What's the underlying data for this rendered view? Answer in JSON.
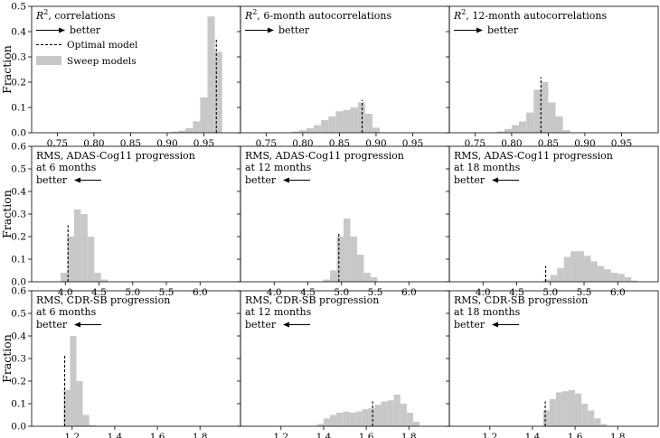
{
  "legend": {
    "optimal_label": "Optimal model",
    "sweep_label": "Sweep models"
  },
  "ylabel": "Fraction",
  "colors": {
    "sweep_bar": "#c8c8c8",
    "optimal_line": "#000000",
    "frame": "#000000"
  },
  "chart_data": [
    {
      "type": "bar",
      "title_math": "R",
      "title_sup": "2",
      "title_text": ", correlations",
      "title_lines": [],
      "direction_label": "better",
      "direction": "right",
      "xlim": [
        0.715,
        1.0
      ],
      "ylim": [
        0,
        0.5
      ],
      "xticks": [
        0.75,
        0.8,
        0.85,
        0.9,
        0.95
      ],
      "xtick_labels": [
        "0.75",
        "0.80",
        "0.85",
        "0.90",
        "0.95"
      ],
      "yticks": [
        0.0,
        0.1,
        0.2,
        0.3,
        0.4,
        0.5
      ],
      "ytick_labels": [
        "0.0",
        "0.1",
        "0.2",
        "0.3",
        "0.4",
        "0.5"
      ],
      "show_ylabel": true,
      "show_legend": true,
      "bins": [
        [
          0.905,
          0.915,
          0.004
        ],
        [
          0.915,
          0.925,
          0.008
        ],
        [
          0.925,
          0.935,
          0.018
        ],
        [
          0.935,
          0.945,
          0.045
        ],
        [
          0.945,
          0.955,
          0.14
        ],
        [
          0.955,
          0.965,
          0.46
        ],
        [
          0.965,
          0.975,
          0.32
        ]
      ],
      "optimal": 0.967,
      "optimal_top": 0.37
    },
    {
      "type": "bar",
      "title_math": "R",
      "title_sup": "2",
      "title_text": ", 6-month autocorrelations",
      "title_lines": [],
      "direction_label": "better",
      "direction": "right",
      "xlim": [
        0.715,
        1.0
      ],
      "ylim": [
        0,
        0.5
      ],
      "xticks": [
        0.75,
        0.8,
        0.85,
        0.9,
        0.95
      ],
      "xtick_labels": [
        "0.75",
        "0.80",
        "0.85",
        "0.90",
        "0.95"
      ],
      "yticks": [
        0.0,
        0.1,
        0.2,
        0.3,
        0.4,
        0.5
      ],
      "ytick_labels": [],
      "show_ylabel": false,
      "show_legend": false,
      "bins": [
        [
          0.785,
          0.795,
          0.005
        ],
        [
          0.795,
          0.805,
          0.01
        ],
        [
          0.805,
          0.815,
          0.018
        ],
        [
          0.815,
          0.825,
          0.03
        ],
        [
          0.825,
          0.835,
          0.05
        ],
        [
          0.835,
          0.845,
          0.065
        ],
        [
          0.845,
          0.855,
          0.085
        ],
        [
          0.855,
          0.865,
          0.09
        ],
        [
          0.865,
          0.875,
          0.1
        ],
        [
          0.875,
          0.885,
          0.12
        ],
        [
          0.885,
          0.895,
          0.075
        ],
        [
          0.895,
          0.905,
          0.02
        ]
      ],
      "optimal": 0.881,
      "optimal_top": 0.13
    },
    {
      "type": "bar",
      "title_math": "R",
      "title_sup": "2",
      "title_text": ", 12-month autocorrelations",
      "title_lines": [],
      "direction_label": "better",
      "direction": "right",
      "xlim": [
        0.715,
        1.0
      ],
      "ylim": [
        0,
        0.5
      ],
      "xticks": [
        0.75,
        0.8,
        0.85,
        0.9,
        0.95
      ],
      "xtick_labels": [
        "0.75",
        "0.80",
        "0.85",
        "0.90",
        "0.95"
      ],
      "yticks": [
        0.0,
        0.1,
        0.2,
        0.3,
        0.4,
        0.5
      ],
      "ytick_labels": [],
      "show_ylabel": false,
      "show_legend": false,
      "bins": [
        [
          0.78,
          0.79,
          0.005
        ],
        [
          0.79,
          0.8,
          0.015
        ],
        [
          0.8,
          0.81,
          0.03
        ],
        [
          0.81,
          0.82,
          0.045
        ],
        [
          0.82,
          0.83,
          0.08
        ],
        [
          0.83,
          0.84,
          0.17
        ],
        [
          0.84,
          0.85,
          0.2
        ],
        [
          0.85,
          0.86,
          0.12
        ],
        [
          0.86,
          0.87,
          0.065
        ],
        [
          0.87,
          0.88,
          0.01
        ]
      ],
      "optimal": 0.84,
      "optimal_top": 0.22
    },
    {
      "type": "bar",
      "title_math": "",
      "title_sup": "",
      "title_text": "",
      "title_lines": [
        "RMS, ADAS-Cog11 progression",
        "at 6 months"
      ],
      "direction_label": "better",
      "direction": "left",
      "xlim": [
        3.5,
        6.6
      ],
      "ylim": [
        0,
        0.6
      ],
      "xticks": [
        4.0,
        4.5,
        5.0,
        5.5,
        6.0
      ],
      "xtick_labels": [
        "4.0",
        "4.5",
        "5.0",
        "5.5",
        "6.0"
      ],
      "yticks": [
        0.0,
        0.1,
        0.2,
        0.3,
        0.4,
        0.5,
        0.6
      ],
      "ytick_labels": [
        "0.0",
        "0.1",
        "0.2",
        "0.3",
        "0.4",
        "0.5",
        "0.6"
      ],
      "show_ylabel": true,
      "show_legend": false,
      "bins": [
        [
          3.93,
          4.03,
          0.04
        ],
        [
          4.03,
          4.13,
          0.2
        ],
        [
          4.13,
          4.23,
          0.32
        ],
        [
          4.23,
          4.33,
          0.3
        ],
        [
          4.33,
          4.43,
          0.2
        ],
        [
          4.43,
          4.53,
          0.04
        ],
        [
          4.53,
          4.63,
          0.01
        ]
      ],
      "optimal": 4.04,
      "optimal_top": 0.25
    },
    {
      "type": "bar",
      "title_math": "",
      "title_sup": "",
      "title_text": "",
      "title_lines": [
        "RMS, ADAS-Cog11 progression",
        "at 12 months"
      ],
      "direction_label": "better",
      "direction": "left",
      "xlim": [
        3.5,
        6.6
      ],
      "ylim": [
        0,
        0.6
      ],
      "xticks": [
        4.0,
        4.5,
        5.0,
        5.5,
        6.0
      ],
      "xtick_labels": [
        "4.0",
        "4.5",
        "5.0",
        "5.5",
        "6.0"
      ],
      "yticks": [
        0.0,
        0.1,
        0.2,
        0.3,
        0.4,
        0.5,
        0.6
      ],
      "ytick_labels": [],
      "show_ylabel": false,
      "show_legend": false,
      "bins": [
        [
          4.73,
          4.83,
          0.01
        ],
        [
          4.83,
          4.93,
          0.05
        ],
        [
          4.93,
          5.03,
          0.2
        ],
        [
          5.03,
          5.13,
          0.28
        ],
        [
          5.13,
          5.23,
          0.2
        ],
        [
          5.23,
          5.33,
          0.12
        ],
        [
          5.33,
          5.43,
          0.04
        ],
        [
          5.43,
          5.53,
          0.02
        ]
      ],
      "optimal": 4.96,
      "optimal_top": 0.22
    },
    {
      "type": "bar",
      "title_math": "",
      "title_sup": "",
      "title_text": "",
      "title_lines": [
        "RMS, ADAS-Cog11 progression",
        "at 18 months"
      ],
      "direction_label": "better",
      "direction": "left",
      "xlim": [
        3.5,
        6.6
      ],
      "ylim": [
        0,
        0.6
      ],
      "xticks": [
        4.0,
        4.5,
        5.0,
        5.5,
        6.0
      ],
      "xtick_labels": [
        "4.0",
        "4.5",
        "5.0",
        "5.5",
        "6.0"
      ],
      "yticks": [
        0.0,
        0.1,
        0.2,
        0.3,
        0.4,
        0.5,
        0.6
      ],
      "ytick_labels": [],
      "show_ylabel": false,
      "show_legend": false,
      "bins": [
        [
          4.9,
          5.0,
          0.01
        ],
        [
          5.0,
          5.1,
          0.03
        ],
        [
          5.1,
          5.2,
          0.06
        ],
        [
          5.2,
          5.3,
          0.11
        ],
        [
          5.3,
          5.4,
          0.135
        ],
        [
          5.4,
          5.5,
          0.135
        ],
        [
          5.5,
          5.6,
          0.115
        ],
        [
          5.6,
          5.7,
          0.09
        ],
        [
          5.7,
          5.8,
          0.07
        ],
        [
          5.8,
          5.9,
          0.055
        ],
        [
          5.9,
          6.0,
          0.04
        ],
        [
          6.0,
          6.1,
          0.035
        ],
        [
          6.1,
          6.2,
          0.02
        ],
        [
          6.2,
          6.3,
          0.005
        ]
      ],
      "optimal": 4.93,
      "optimal_top": 0.07
    },
    {
      "type": "bar",
      "title_math": "",
      "title_sup": "",
      "title_text": "",
      "title_lines": [
        "RMS, CDR-SB progression",
        "at 6 months"
      ],
      "direction_label": "better",
      "direction": "left",
      "xlim": [
        1.01,
        1.99
      ],
      "ylim": [
        0,
        0.6
      ],
      "xticks": [
        1.2,
        1.4,
        1.6,
        1.8
      ],
      "xtick_labels": [
        "1.2",
        "1.4",
        "1.6",
        "1.8"
      ],
      "yticks": [
        0.0,
        0.1,
        0.2,
        0.3,
        0.4,
        0.5,
        0.6
      ],
      "ytick_labels": [
        "0.0",
        "0.1",
        "0.2",
        "0.3",
        "0.4",
        "0.5",
        "0.6"
      ],
      "show_ylabel": true,
      "show_legend": false,
      "bins": [
        [
          1.16,
          1.19,
          0.16
        ],
        [
          1.19,
          1.22,
          0.4
        ],
        [
          1.22,
          1.25,
          0.2
        ],
        [
          1.25,
          1.28,
          0.05
        ],
        [
          1.28,
          1.31,
          0.005
        ]
      ],
      "optimal": 1.165,
      "optimal_top": 0.32
    },
    {
      "type": "bar",
      "title_math": "",
      "title_sup": "",
      "title_text": "",
      "title_lines": [
        "RMS, CDR-SB progression",
        "at 12 months"
      ],
      "direction_label": "better",
      "direction": "left",
      "xlim": [
        1.01,
        1.99
      ],
      "ylim": [
        0,
        0.6
      ],
      "xticks": [
        1.2,
        1.4,
        1.6,
        1.8
      ],
      "xtick_labels": [
        "1.2",
        "1.4",
        "1.6",
        "1.8"
      ],
      "yticks": [
        0.0,
        0.1,
        0.2,
        0.3,
        0.4,
        0.5,
        0.6
      ],
      "ytick_labels": [],
      "show_ylabel": false,
      "show_legend": false,
      "bins": [
        [
          1.37,
          1.4,
          0.01
        ],
        [
          1.4,
          1.43,
          0.035
        ],
        [
          1.43,
          1.46,
          0.05
        ],
        [
          1.46,
          1.49,
          0.06
        ],
        [
          1.49,
          1.52,
          0.065
        ],
        [
          1.52,
          1.55,
          0.06
        ],
        [
          1.55,
          1.58,
          0.065
        ],
        [
          1.58,
          1.61,
          0.075
        ],
        [
          1.61,
          1.64,
          0.08
        ],
        [
          1.64,
          1.67,
          0.095
        ],
        [
          1.67,
          1.7,
          0.11
        ],
        [
          1.7,
          1.73,
          0.115
        ],
        [
          1.73,
          1.76,
          0.14
        ],
        [
          1.76,
          1.79,
          0.1
        ],
        [
          1.79,
          1.82,
          0.06
        ],
        [
          1.82,
          1.85,
          0.02
        ]
      ],
      "optimal": 1.63,
      "optimal_top": 0.11
    },
    {
      "type": "bar",
      "title_math": "",
      "title_sup": "",
      "title_text": "",
      "title_lines": [
        "RMS, CDR-SB progression",
        "at 18 months"
      ],
      "direction_label": "better",
      "direction": "left",
      "xlim": [
        1.01,
        1.99
      ],
      "ylim": [
        0,
        0.6
      ],
      "xticks": [
        1.2,
        1.4,
        1.6,
        1.8
      ],
      "xtick_labels": [
        "1.2",
        "1.4",
        "1.6",
        "1.8"
      ],
      "yticks": [
        0.0,
        0.1,
        0.2,
        0.3,
        0.4,
        0.5,
        0.6
      ],
      "ytick_labels": [],
      "show_ylabel": false,
      "show_legend": false,
      "bins": [
        [
          1.45,
          1.48,
          0.07
        ],
        [
          1.48,
          1.51,
          0.12
        ],
        [
          1.51,
          1.54,
          0.15
        ],
        [
          1.54,
          1.57,
          0.155
        ],
        [
          1.57,
          1.6,
          0.16
        ],
        [
          1.6,
          1.63,
          0.145
        ],
        [
          1.63,
          1.66,
          0.1
        ],
        [
          1.66,
          1.69,
          0.07
        ],
        [
          1.69,
          1.72,
          0.035
        ],
        [
          1.72,
          1.75,
          0.01
        ]
      ],
      "optimal": 1.46,
      "optimal_top": 0.11
    }
  ]
}
